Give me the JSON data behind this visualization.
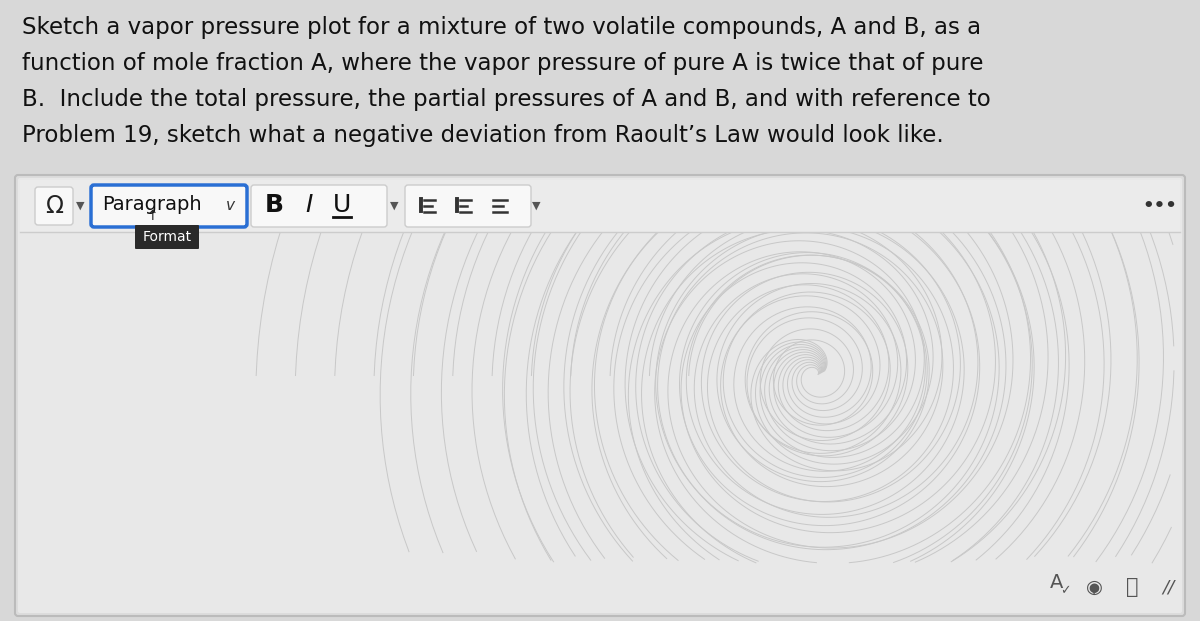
{
  "bg_color": "#d8d8d8",
  "editor_bg": "#e8e8e8",
  "editor_border": "#bbbbbb",
  "toolbar_bg": "#f0f0f0",
  "para_border": "#2a6fd4",
  "btn_border": "#cccccc",
  "btn_bg": "#f8f8f8",
  "question_text_lines": [
    "Sketch a vapor pressure plot for a mixture of two volatile compounds, A and B, as a",
    "function of mole fraction A, where the vapor pressure of pure A is twice that of pure",
    "B.  Include the total pressure, the partial pressures of A and B, and with reference to",
    "Problem 19, sketch what a negative deviation from Raoult’s Law would look like."
  ],
  "question_fontsize": 16.5,
  "question_color": "#111111",
  "format_tooltip": "Format",
  "figsize": [
    12.0,
    6.21
  ],
  "dpi": 100
}
